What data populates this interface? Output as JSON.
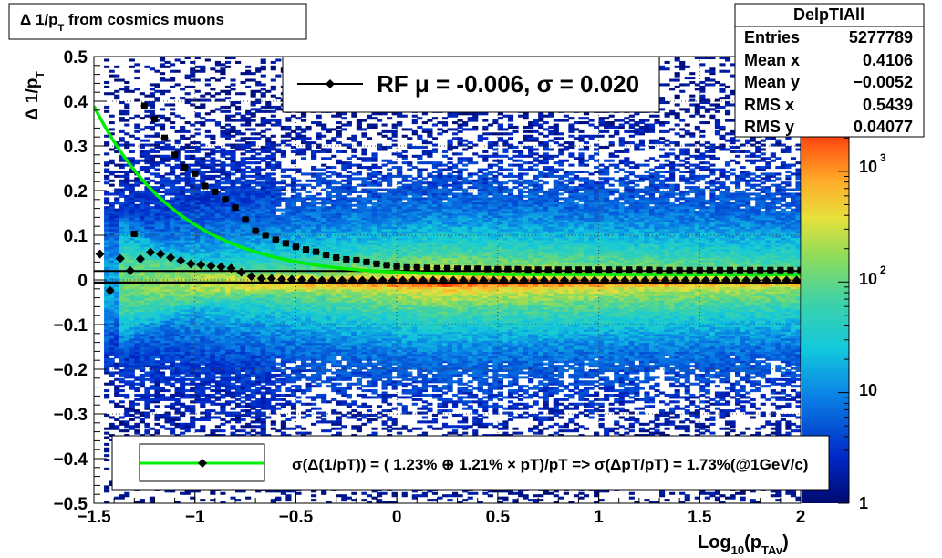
{
  "title": "Δ 1/p",
  "title_sub": "T",
  "title_tail": " from cosmics muons",
  "xlabel": {
    "main": "Log",
    "sub1": "10",
    "paren": "(p",
    "sub2": "TAv",
    "close": ")"
  },
  "ylabel": {
    "main": "Δ 1/p",
    "sub": "T"
  },
  "stats": {
    "name": "DelpTIAll",
    "rows": [
      {
        "label": "Entries",
        "value": "5277789"
      },
      {
        "label": "Mean x",
        "value": "0.4106"
      },
      {
        "label": "Mean y",
        "value": "−0.0052"
      },
      {
        "label": "RMS x",
        "value": "0.5439"
      },
      {
        "label": "RMS y",
        "value": "0.04077"
      }
    ]
  },
  "legend_top": {
    "text": "RF μ = -0.006, σ =   0.020"
  },
  "legend_bottom": {
    "text": "σ(Δ(1/pT)) = ( 1.23% ⊕  1.21% × pT)/pT => σ(ΔpT/pT) =  1.73%(@1GeV/c)"
  },
  "palette_labels": [
    "1",
    "10",
    "10",
    "10"
  ],
  "palette_exps": [
    "",
    "",
    "2",
    "3"
  ],
  "colors": {
    "fit_curve": "#00ee00",
    "markers": "#000000"
  },
  "chart_data": {
    "type": "heatmap",
    "xlim": [
      -1.5,
      2
    ],
    "ylim": [
      -0.5,
      0.5
    ],
    "z_scale": "log",
    "zlim": [
      1,
      3000
    ],
    "x_ticks": [
      "−1.5",
      "−1",
      "−0.5",
      "0",
      "0.5",
      "1",
      "1.5",
      "2"
    ],
    "y_ticks": [
      "−0.5",
      "−0.4",
      "−0.3",
      "−0.2",
      "−0.1",
      "0",
      "0.1",
      "0.2",
      "0.3",
      "0.4",
      "0.5"
    ],
    "grid": true,
    "mean_profile": {
      "x": [
        -1.47,
        -1.42,
        -1.37,
        -1.32,
        -1.27,
        -1.22,
        -1.17,
        -1.12,
        -1.07,
        -1.02,
        -0.97,
        -0.92,
        -0.87,
        -0.82,
        -0.77,
        -0.72,
        -0.67,
        -0.62,
        -0.57,
        -0.52,
        -0.47,
        -0.42,
        -0.37,
        -0.32,
        -0.27,
        -0.22,
        -0.17,
        -0.12,
        -0.07,
        -0.02,
        0.03,
        0.08,
        0.13,
        0.18,
        0.23,
        0.28,
        0.33,
        0.38,
        0.43,
        0.48,
        0.53,
        0.58,
        0.63,
        0.68,
        0.73,
        0.78,
        0.83,
        0.88,
        0.93,
        0.98,
        1.03,
        1.08,
        1.13,
        1.18,
        1.23,
        1.28,
        1.33,
        1.38,
        1.43,
        1.48,
        1.53,
        1.58,
        1.63,
        1.68,
        1.73,
        1.78,
        1.83,
        1.88,
        1.93,
        1.98
      ],
      "y": [
        0.058,
        -0.024,
        0.048,
        0.021,
        0.047,
        0.062,
        0.058,
        0.05,
        0.043,
        0.036,
        0.034,
        0.031,
        0.029,
        0.026,
        0.017,
        0.008,
        0.003,
        0.003,
        0.001,
        0.001,
        0.0,
        -0.001,
        -0.001,
        -0.001,
        -0.001,
        -0.001,
        -0.001,
        -0.001,
        -0.001,
        -0.001,
        -0.001,
        -0.001,
        -0.001,
        -0.001,
        -0.001,
        -0.001,
        -0.001,
        -0.001,
        -0.001,
        -0.001,
        -0.001,
        -0.001,
        -0.001,
        -0.001,
        -0.001,
        -0.001,
        -0.001,
        -0.001,
        -0.001,
        -0.001,
        -0.001,
        -0.001,
        -0.001,
        -0.001,
        -0.001,
        -0.001,
        -0.001,
        -0.001,
        -0.001,
        -0.001,
        -0.001,
        -0.001,
        -0.001,
        -0.001,
        -0.001,
        -0.001,
        -0.001,
        -0.001,
        -0.001,
        -0.001
      ]
    },
    "sigma_profile": {
      "x": [
        -1.3,
        -1.25,
        -1.2,
        -1.15,
        -1.1,
        -1.05,
        -1.0,
        -0.95,
        -0.9,
        -0.85,
        -0.8,
        -0.75,
        -0.7,
        -0.65,
        -0.6,
        -0.55,
        -0.5,
        -0.45,
        -0.4,
        -0.35,
        -0.3,
        -0.25,
        -0.2,
        -0.15,
        -0.1,
        -0.05,
        0.0,
        0.05,
        0.1,
        0.15,
        0.2,
        0.25,
        0.3,
        0.35,
        0.4,
        0.45,
        0.5,
        0.55,
        0.6,
        0.65,
        0.7,
        0.75,
        0.8,
        0.85,
        0.9,
        0.95,
        1.0,
        1.05,
        1.1,
        1.15,
        1.2,
        1.25,
        1.3,
        1.35,
        1.4,
        1.45,
        1.5,
        1.55,
        1.6,
        1.65,
        1.7,
        1.75,
        1.8,
        1.85,
        1.9,
        1.95,
        2.0
      ],
      "y": [
        0.103,
        0.39,
        0.36,
        0.318,
        0.28,
        0.252,
        0.238,
        0.21,
        0.197,
        0.18,
        0.162,
        0.135,
        0.11,
        0.1,
        0.09,
        0.082,
        0.074,
        0.068,
        0.063,
        0.056,
        0.05,
        0.046,
        0.044,
        0.04,
        0.036,
        0.033,
        0.03,
        0.028,
        0.028,
        0.027,
        0.026,
        0.026,
        0.025,
        0.025,
        0.025,
        0.024,
        0.024,
        0.024,
        0.024,
        0.023,
        0.023,
        0.023,
        0.023,
        0.023,
        0.023,
        0.023,
        0.023,
        0.023,
        0.023,
        0.023,
        0.023,
        0.023,
        0.022,
        0.022,
        0.022,
        0.022,
        0.022,
        0.022,
        0.022,
        0.022,
        0.022,
        0.022,
        0.022,
        0.022,
        0.022,
        0.022,
        0.022
      ]
    },
    "fit_curve": {
      "a": 0.0123,
      "b": 0.0121
    },
    "mean_line_y": -0.006,
    "sigma_line_y": 0.02
  }
}
